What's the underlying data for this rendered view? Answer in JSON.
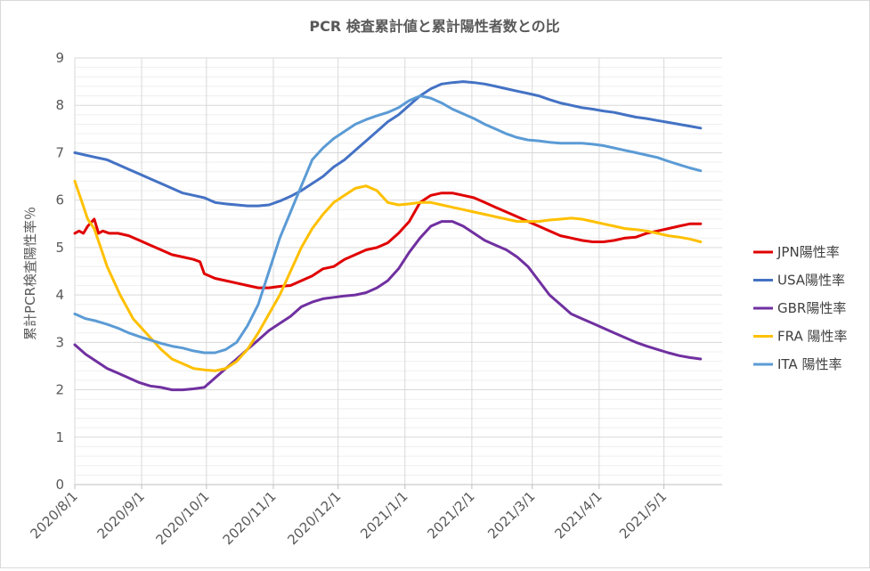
{
  "chart_data": {
    "type": "line",
    "title": "PCR 検査累計値と累計陽性者数との比",
    "xlabel": "",
    "ylabel": "累計PCR検査陽性率％",
    "ylim": [
      0,
      9
    ],
    "y_ticks": [
      "0",
      "1",
      "2",
      "3",
      "4",
      "5",
      "6",
      "7",
      "8",
      "9"
    ],
    "x_ticks": [
      "2020/8/1",
      "2020/9/1",
      "2020/10/1",
      "2020/11/1",
      "2020/12/1",
      "2021/1/1",
      "2021/2/1",
      "2021/3/1",
      "2021/4/1",
      "2021/5/1"
    ],
    "x_tick_days": [
      0,
      31,
      61,
      92,
      122,
      153,
      184,
      212,
      243,
      273
    ],
    "grid": true,
    "legend_position": "right",
    "series": [
      {
        "name": "JPN陽性率",
        "color": "#e00000",
        "points": [
          [
            0,
            5.3
          ],
          [
            2,
            5.35
          ],
          [
            4,
            5.3
          ],
          [
            6,
            5.45
          ],
          [
            9,
            5.6
          ],
          [
            11,
            5.3
          ],
          [
            13,
            5.35
          ],
          [
            16,
            5.3
          ],
          [
            20,
            5.3
          ],
          [
            25,
            5.25
          ],
          [
            30,
            5.15
          ],
          [
            35,
            5.05
          ],
          [
            40,
            4.95
          ],
          [
            45,
            4.85
          ],
          [
            50,
            4.8
          ],
          [
            55,
            4.75
          ],
          [
            58,
            4.7
          ],
          [
            60,
            4.45
          ],
          [
            65,
            4.35
          ],
          [
            70,
            4.3
          ],
          [
            75,
            4.25
          ],
          [
            80,
            4.2
          ],
          [
            85,
            4.15
          ],
          [
            90,
            4.15
          ],
          [
            95,
            4.18
          ],
          [
            100,
            4.2
          ],
          [
            105,
            4.3
          ],
          [
            110,
            4.4
          ],
          [
            115,
            4.55
          ],
          [
            120,
            4.6
          ],
          [
            125,
            4.75
          ],
          [
            130,
            4.85
          ],
          [
            135,
            4.95
          ],
          [
            140,
            5.0
          ],
          [
            145,
            5.1
          ],
          [
            150,
            5.3
          ],
          [
            155,
            5.55
          ],
          [
            160,
            5.95
          ],
          [
            165,
            6.1
          ],
          [
            170,
            6.15
          ],
          [
            175,
            6.15
          ],
          [
            180,
            6.1
          ],
          [
            185,
            6.05
          ],
          [
            190,
            5.95
          ],
          [
            195,
            5.85
          ],
          [
            200,
            5.75
          ],
          [
            205,
            5.65
          ],
          [
            210,
            5.55
          ],
          [
            215,
            5.45
          ],
          [
            220,
            5.35
          ],
          [
            225,
            5.25
          ],
          [
            230,
            5.2
          ],
          [
            235,
            5.15
          ],
          [
            240,
            5.12
          ],
          [
            245,
            5.12
          ],
          [
            250,
            5.15
          ],
          [
            255,
            5.2
          ],
          [
            260,
            5.22
          ],
          [
            265,
            5.3
          ],
          [
            270,
            5.35
          ],
          [
            275,
            5.4
          ],
          [
            280,
            5.45
          ],
          [
            285,
            5.5
          ],
          [
            290,
            5.5
          ]
        ]
      },
      {
        "name": "USA陽性率",
        "color": "#4472c4",
        "points": [
          [
            0,
            7.0
          ],
          [
            5,
            6.95
          ],
          [
            10,
            6.9
          ],
          [
            15,
            6.85
          ],
          [
            20,
            6.75
          ],
          [
            25,
            6.65
          ],
          [
            30,
            6.55
          ],
          [
            35,
            6.45
          ],
          [
            40,
            6.35
          ],
          [
            45,
            6.25
          ],
          [
            50,
            6.15
          ],
          [
            55,
            6.1
          ],
          [
            60,
            6.05
          ],
          [
            65,
            5.95
          ],
          [
            70,
            5.92
          ],
          [
            75,
            5.9
          ],
          [
            80,
            5.88
          ],
          [
            85,
            5.88
          ],
          [
            90,
            5.9
          ],
          [
            95,
            5.98
          ],
          [
            100,
            6.08
          ],
          [
            105,
            6.2
          ],
          [
            110,
            6.35
          ],
          [
            115,
            6.5
          ],
          [
            120,
            6.7
          ],
          [
            125,
            6.85
          ],
          [
            130,
            7.05
          ],
          [
            135,
            7.25
          ],
          [
            140,
            7.45
          ],
          [
            145,
            7.65
          ],
          [
            150,
            7.8
          ],
          [
            155,
            8.0
          ],
          [
            160,
            8.2
          ],
          [
            165,
            8.35
          ],
          [
            170,
            8.45
          ],
          [
            175,
            8.48
          ],
          [
            180,
            8.5
          ],
          [
            185,
            8.48
          ],
          [
            190,
            8.45
          ],
          [
            195,
            8.4
          ],
          [
            200,
            8.35
          ],
          [
            205,
            8.3
          ],
          [
            210,
            8.25
          ],
          [
            215,
            8.2
          ],
          [
            220,
            8.12
          ],
          [
            225,
            8.05
          ],
          [
            230,
            8.0
          ],
          [
            235,
            7.95
          ],
          [
            240,
            7.92
          ],
          [
            245,
            7.88
          ],
          [
            250,
            7.85
          ],
          [
            255,
            7.8
          ],
          [
            260,
            7.75
          ],
          [
            265,
            7.72
          ],
          [
            270,
            7.68
          ],
          [
            275,
            7.64
          ],
          [
            280,
            7.6
          ],
          [
            285,
            7.56
          ],
          [
            290,
            7.52
          ]
        ]
      },
      {
        "name": "GBR陽性率",
        "color": "#7030a0",
        "points": [
          [
            0,
            2.95
          ],
          [
            5,
            2.75
          ],
          [
            10,
            2.6
          ],
          [
            15,
            2.45
          ],
          [
            20,
            2.35
          ],
          [
            25,
            2.25
          ],
          [
            30,
            2.15
          ],
          [
            35,
            2.08
          ],
          [
            40,
            2.05
          ],
          [
            45,
            2.0
          ],
          [
            50,
            2.0
          ],
          [
            55,
            2.02
          ],
          [
            60,
            2.05
          ],
          [
            65,
            2.25
          ],
          [
            70,
            2.45
          ],
          [
            75,
            2.65
          ],
          [
            80,
            2.85
          ],
          [
            85,
            3.05
          ],
          [
            90,
            3.25
          ],
          [
            95,
            3.4
          ],
          [
            100,
            3.55
          ],
          [
            105,
            3.75
          ],
          [
            110,
            3.85
          ],
          [
            115,
            3.92
          ],
          [
            120,
            3.95
          ],
          [
            125,
            3.98
          ],
          [
            130,
            4.0
          ],
          [
            135,
            4.05
          ],
          [
            140,
            4.15
          ],
          [
            145,
            4.3
          ],
          [
            150,
            4.55
          ],
          [
            155,
            4.9
          ],
          [
            160,
            5.2
          ],
          [
            165,
            5.45
          ],
          [
            170,
            5.55
          ],
          [
            175,
            5.55
          ],
          [
            180,
            5.45
          ],
          [
            185,
            5.3
          ],
          [
            190,
            5.15
          ],
          [
            195,
            5.05
          ],
          [
            200,
            4.95
          ],
          [
            205,
            4.8
          ],
          [
            210,
            4.6
          ],
          [
            215,
            4.3
          ],
          [
            220,
            4.0
          ],
          [
            225,
            3.8
          ],
          [
            230,
            3.6
          ],
          [
            235,
            3.5
          ],
          [
            240,
            3.4
          ],
          [
            245,
            3.3
          ],
          [
            250,
            3.2
          ],
          [
            255,
            3.1
          ],
          [
            260,
            3.0
          ],
          [
            265,
            2.92
          ],
          [
            270,
            2.85
          ],
          [
            275,
            2.78
          ],
          [
            280,
            2.72
          ],
          [
            285,
            2.68
          ],
          [
            290,
            2.65
          ]
        ]
      },
      {
        "name": "FRA 陽性率",
        "color": "#ffc000",
        "points": [
          [
            0,
            6.4
          ],
          [
            3,
            6.0
          ],
          [
            6,
            5.6
          ],
          [
            9,
            5.4
          ],
          [
            12,
            5.0
          ],
          [
            15,
            4.6
          ],
          [
            18,
            4.3
          ],
          [
            21,
            4.0
          ],
          [
            24,
            3.75
          ],
          [
            27,
            3.5
          ],
          [
            30,
            3.35
          ],
          [
            35,
            3.1
          ],
          [
            40,
            2.85
          ],
          [
            45,
            2.65
          ],
          [
            50,
            2.55
          ],
          [
            55,
            2.45
          ],
          [
            60,
            2.42
          ],
          [
            65,
            2.4
          ],
          [
            70,
            2.45
          ],
          [
            75,
            2.6
          ],
          [
            80,
            2.85
          ],
          [
            85,
            3.2
          ],
          [
            90,
            3.6
          ],
          [
            95,
            4.0
          ],
          [
            100,
            4.5
          ],
          [
            105,
            5.0
          ],
          [
            110,
            5.4
          ],
          [
            115,
            5.7
          ],
          [
            120,
            5.95
          ],
          [
            125,
            6.1
          ],
          [
            130,
            6.25
          ],
          [
            135,
            6.3
          ],
          [
            140,
            6.2
          ],
          [
            145,
            5.95
          ],
          [
            150,
            5.9
          ],
          [
            155,
            5.92
          ],
          [
            160,
            5.95
          ],
          [
            165,
            5.95
          ],
          [
            170,
            5.9
          ],
          [
            175,
            5.85
          ],
          [
            180,
            5.8
          ],
          [
            185,
            5.75
          ],
          [
            190,
            5.7
          ],
          [
            195,
            5.65
          ],
          [
            200,
            5.6
          ],
          [
            205,
            5.55
          ],
          [
            210,
            5.55
          ],
          [
            215,
            5.55
          ],
          [
            220,
            5.58
          ],
          [
            225,
            5.6
          ],
          [
            230,
            5.62
          ],
          [
            235,
            5.6
          ],
          [
            240,
            5.55
          ],
          [
            245,
            5.5
          ],
          [
            250,
            5.45
          ],
          [
            255,
            5.4
          ],
          [
            260,
            5.38
          ],
          [
            265,
            5.35
          ],
          [
            270,
            5.3
          ],
          [
            275,
            5.25
          ],
          [
            280,
            5.22
          ],
          [
            285,
            5.18
          ],
          [
            290,
            5.12
          ]
        ]
      },
      {
        "name": "ITA 陽性率",
        "color": "#5b9bd5",
        "points": [
          [
            0,
            3.6
          ],
          [
            5,
            3.5
          ],
          [
            10,
            3.45
          ],
          [
            15,
            3.38
          ],
          [
            20,
            3.3
          ],
          [
            25,
            3.2
          ],
          [
            30,
            3.12
          ],
          [
            35,
            3.05
          ],
          [
            40,
            2.98
          ],
          [
            45,
            2.92
          ],
          [
            50,
            2.88
          ],
          [
            55,
            2.82
          ],
          [
            60,
            2.78
          ],
          [
            65,
            2.78
          ],
          [
            70,
            2.85
          ],
          [
            75,
            3.0
          ],
          [
            80,
            3.35
          ],
          [
            85,
            3.8
          ],
          [
            90,
            4.5
          ],
          [
            95,
            5.2
          ],
          [
            100,
            5.75
          ],
          [
            105,
            6.3
          ],
          [
            110,
            6.85
          ],
          [
            115,
            7.1
          ],
          [
            120,
            7.3
          ],
          [
            125,
            7.45
          ],
          [
            130,
            7.6
          ],
          [
            135,
            7.7
          ],
          [
            140,
            7.78
          ],
          [
            145,
            7.85
          ],
          [
            150,
            7.95
          ],
          [
            155,
            8.1
          ],
          [
            160,
            8.2
          ],
          [
            165,
            8.15
          ],
          [
            170,
            8.05
          ],
          [
            175,
            7.92
          ],
          [
            180,
            7.82
          ],
          [
            185,
            7.72
          ],
          [
            190,
            7.6
          ],
          [
            195,
            7.5
          ],
          [
            200,
            7.4
          ],
          [
            205,
            7.32
          ],
          [
            210,
            7.27
          ],
          [
            215,
            7.25
          ],
          [
            220,
            7.22
          ],
          [
            225,
            7.2
          ],
          [
            230,
            7.2
          ],
          [
            235,
            7.2
          ],
          [
            240,
            7.18
          ],
          [
            245,
            7.15
          ],
          [
            250,
            7.1
          ],
          [
            255,
            7.05
          ],
          [
            260,
            7.0
          ],
          [
            265,
            6.95
          ],
          [
            270,
            6.9
          ],
          [
            275,
            6.82
          ],
          [
            280,
            6.75
          ],
          [
            285,
            6.68
          ],
          [
            290,
            6.62
          ]
        ]
      }
    ]
  }
}
